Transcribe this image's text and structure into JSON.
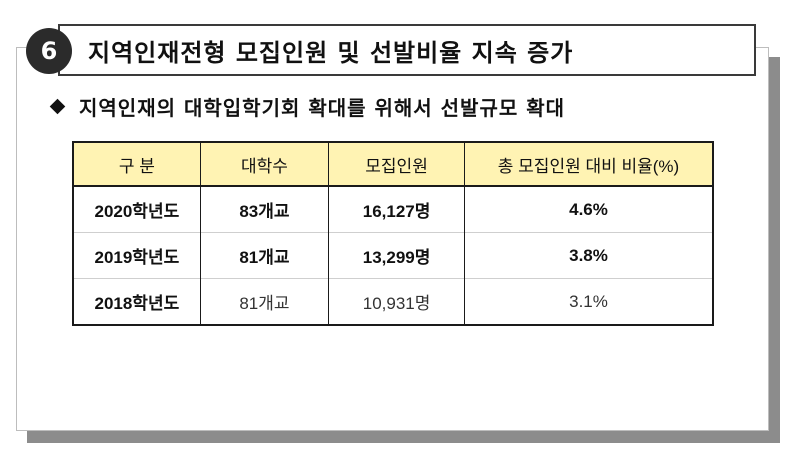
{
  "slide": {
    "number": "6",
    "title": "지역인재전형 모집인원 및 선발비율 지속 증가",
    "subtitle": "지역인재의 대학입학기회 확대를 위해서 선발규모 확대",
    "colors": {
      "badge": "#2b2b2b",
      "header_fill": "#fff3b3",
      "shadow": "#8c8c8c"
    }
  },
  "table": {
    "headers": [
      "구  분",
      "대학수",
      "모집인원",
      "총 모집인원 대비 비율(%)"
    ],
    "rows": [
      {
        "year": "2020학년도",
        "universities": "83개교",
        "quota": "16,127명",
        "ratio": "4.6%"
      },
      {
        "year": "2019학년도",
        "universities": "81개교",
        "quota": "13,299명",
        "ratio": "3.8%"
      },
      {
        "year": "2018학년도",
        "universities": "81개교",
        "quota": "10,931명",
        "ratio": "3.1%"
      }
    ]
  }
}
